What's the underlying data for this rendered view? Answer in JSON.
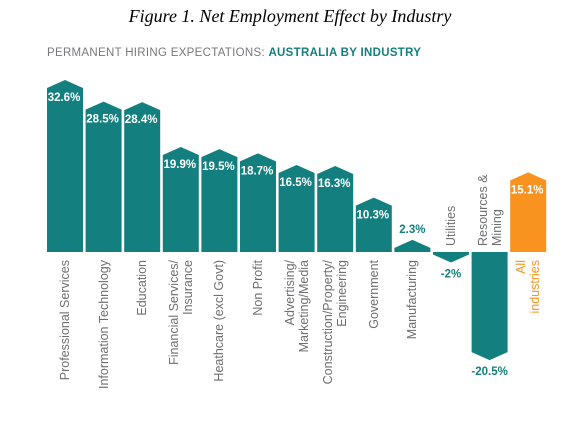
{
  "chart_data": {
    "type": "bar",
    "title": "Figure 1. Net Employment Effect by Industry",
    "subtitle": "PERMANENT HIRING EXPECTATIONS: ",
    "subtitle_highlight": "AUSTRALIA BY INDUSTRY",
    "categories": [
      "Professional Services",
      "Information Technology",
      "Education",
      "Financial Services/\nInsurance",
      "Heathcare (excl Govt)",
      "Non Profit",
      "Advertising/\nMarketing/Media",
      "Construction/Property/\nEngineering",
      "Government",
      "Manufacturing",
      "Utilities",
      "Resources &\nMining",
      "All industries"
    ],
    "values": [
      32.6,
      28.5,
      28.4,
      19.9,
      19.5,
      18.7,
      16.5,
      16.3,
      10.3,
      2.3,
      -2,
      -20.5,
      15.1
    ],
    "value_labels": [
      "32.6%",
      "28.5%",
      "28.4%",
      "19.9%",
      "19.5%",
      "18.7%",
      "16.5%",
      "16.3%",
      "10.3%",
      "2.3%",
      "-2%",
      "-20.5%",
      "15.1%"
    ],
    "colors": [
      "#13807f",
      "#13807f",
      "#13807f",
      "#13807f",
      "#13807f",
      "#13807f",
      "#13807f",
      "#13807f",
      "#13807f",
      "#13807f",
      "#13807f",
      "#13807f",
      "#f7931e"
    ]
  }
}
